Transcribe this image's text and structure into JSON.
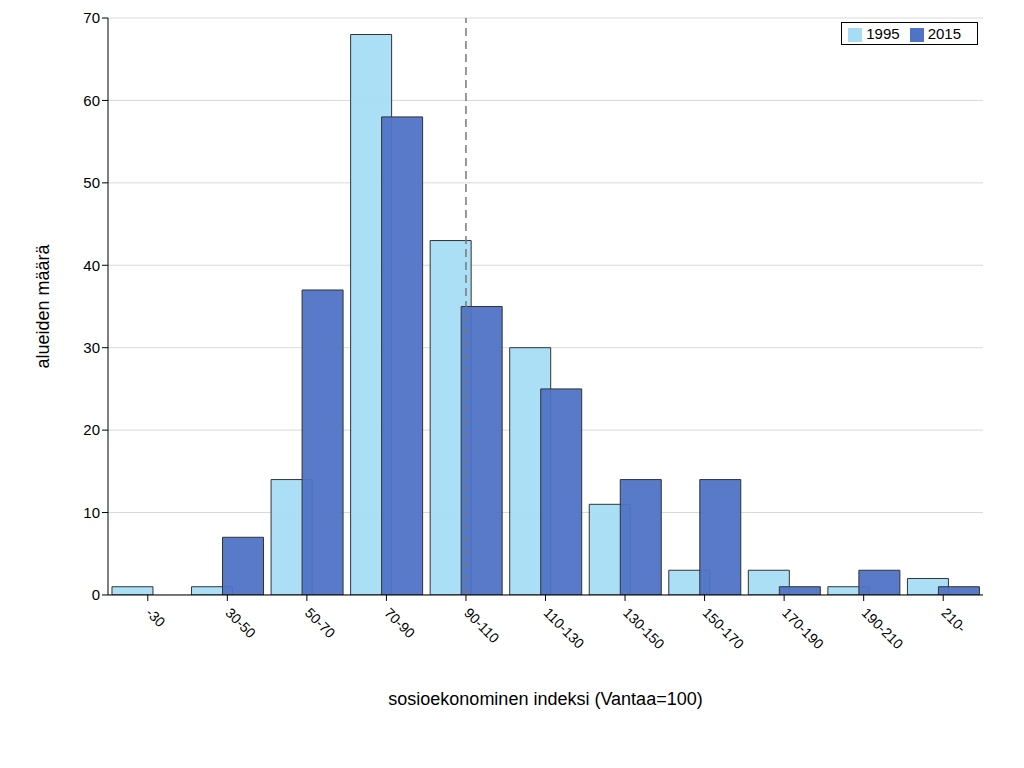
{
  "chart_data": {
    "type": "bar",
    "x_label": "sosioekonominen indeksi (Vantaa=100)",
    "y_label": "alueiden määrä",
    "categories": [
      "-30",
      "30-50",
      "50-70",
      "70-90",
      "90-110",
      "110-130",
      "130-150",
      "150-170",
      "170-190",
      "190-210",
      "210-"
    ],
    "series": [
      {
        "name": "1995",
        "color": "#a6ddf5",
        "values": [
          1,
          1,
          14,
          68,
          43,
          30,
          11,
          3,
          3,
          1,
          2
        ]
      },
      {
        "name": "2015",
        "color": "#4f73c6",
        "values": [
          0,
          7,
          37,
          58,
          35,
          25,
          14,
          14,
          1,
          3,
          1
        ]
      }
    ],
    "ylim": [
      0,
      70
    ],
    "yticks": [
      0,
      10,
      20,
      30,
      40,
      50,
      60,
      70
    ],
    "grid": true,
    "legend": "top-right",
    "reference_line": "90-110"
  }
}
